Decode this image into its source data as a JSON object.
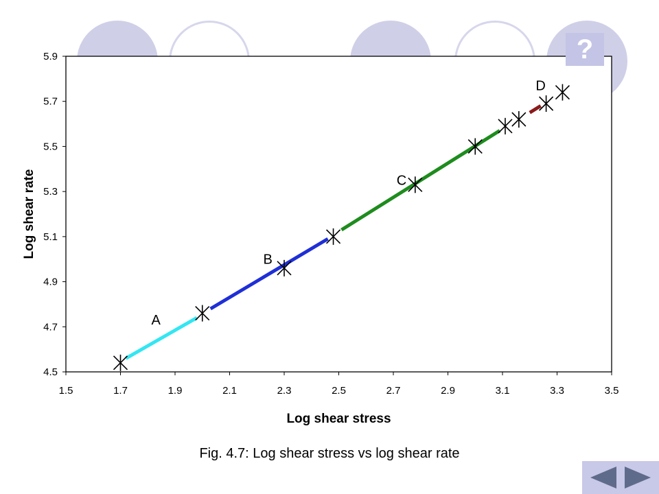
{
  "help": {
    "label": "?"
  },
  "caption": {
    "prefix": "Fig. 4.7:",
    "text": " Log shear stress vs log shear rate"
  },
  "nav": {
    "prev_icon": "triangle-left-icon",
    "next_icon": "triangle-right-icon"
  },
  "colors": {
    "segment_A": "#33e6f2",
    "segment_B": "#1f2fd6",
    "segment_C": "#1e8c1e",
    "segment_D": "#8b1a1a",
    "decor": "#cfcfe8"
  },
  "chart_data": {
    "type": "line",
    "xlabel": "Log shear stress",
    "ylabel": "Log shear rate",
    "xlim": [
      1.5,
      3.5
    ],
    "ylim": [
      4.5,
      5.9
    ],
    "xticks": [
      "1.5",
      "1.7",
      "1.9",
      "2.1",
      "2.3",
      "2.5",
      "2.7",
      "2.9",
      "3.1",
      "3.3",
      "3.5"
    ],
    "yticks": [
      "4.5",
      "4.7",
      "4.9",
      "5.1",
      "5.3",
      "5.5",
      "5.7",
      "5.9"
    ],
    "grid": false,
    "points": [
      {
        "x": 1.7,
        "y": 4.54
      },
      {
        "x": 2.0,
        "y": 4.76
      },
      {
        "x": 2.3,
        "y": 4.96
      },
      {
        "x": 2.48,
        "y": 5.1
      },
      {
        "x": 2.78,
        "y": 5.33
      },
      {
        "x": 3.0,
        "y": 5.5
      },
      {
        "x": 3.11,
        "y": 5.59
      },
      {
        "x": 3.16,
        "y": 5.62
      },
      {
        "x": 3.26,
        "y": 5.69
      },
      {
        "x": 3.32,
        "y": 5.74
      }
    ],
    "segments": [
      {
        "name": "A",
        "color": "#33e6f2",
        "from": {
          "x": 1.72,
          "y": 4.56
        },
        "to": {
          "x": 1.98,
          "y": 4.74
        },
        "label_at": {
          "x": 1.83,
          "y": 4.71
        }
      },
      {
        "name": "B",
        "color": "#1f2fd6",
        "from": {
          "x": 2.03,
          "y": 4.78
        },
        "to": {
          "x": 2.46,
          "y": 5.09
        },
        "label_at": {
          "x": 2.24,
          "y": 4.98
        }
      },
      {
        "name": "C",
        "color": "#1e8c1e",
        "from": {
          "x": 2.51,
          "y": 5.13
        },
        "to": {
          "x": 3.09,
          "y": 5.57
        },
        "label_at": {
          "x": 2.73,
          "y": 5.33
        }
      },
      {
        "name": "D",
        "color": "#8b1a1a",
        "from": {
          "x": 3.2,
          "y": 5.65
        },
        "to": {
          "x": 3.24,
          "y": 5.68
        },
        "label_at": {
          "x": 3.24,
          "y": 5.75
        }
      }
    ]
  }
}
